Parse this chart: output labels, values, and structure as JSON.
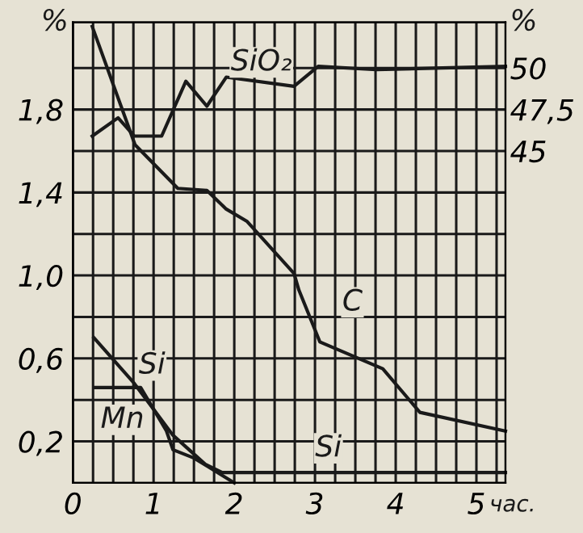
{
  "chart_data": {
    "type": "line",
    "xlabel": "час.",
    "ylabel": "%",
    "y2label": "%",
    "xlim": [
      0,
      5.36
    ],
    "ylim": [
      0,
      2.22
    ],
    "y2lim": [
      25,
      52.75
    ],
    "xticks": [
      0,
      {
        "value": 0.25,
        "label": null
      },
      {
        "value": 0.5,
        "label": null
      },
      {
        "value": 0.75,
        "label": null
      },
      1,
      {
        "value": 1.25,
        "label": null
      },
      {
        "value": 1.5,
        "label": null
      },
      {
        "value": 1.75,
        "label": null
      },
      2,
      {
        "value": 2.25,
        "label": null
      },
      {
        "value": 2.5,
        "label": null
      },
      {
        "value": 2.75,
        "label": null
      },
      3,
      {
        "value": 3.25,
        "label": null
      },
      {
        "value": 3.5,
        "label": null
      },
      {
        "value": 3.75,
        "label": null
      },
      4,
      {
        "value": 4.25,
        "label": null
      },
      {
        "value": 4.5,
        "label": null
      },
      {
        "value": 4.75,
        "label": null
      },
      5,
      {
        "value": 5.25,
        "label": null
      }
    ],
    "yticks": [
      {
        "value": 0.2,
        "label": "0,2"
      },
      {
        "value": 0.4,
        "label": null
      },
      {
        "value": 0.6,
        "label": "0,6"
      },
      {
        "value": 0.8,
        "label": null
      },
      {
        "value": 1.0,
        "label": "1,0"
      },
      {
        "value": 1.2,
        "label": null
      },
      {
        "value": 1.4,
        "label": "1,4"
      },
      {
        "value": 1.6,
        "label": null
      },
      {
        "value": 1.8,
        "label": "1,8"
      },
      {
        "value": 2.0,
        "label": null
      }
    ],
    "y2ticks": [
      45,
      {
        "value": 47.5,
        "label": "47,5"
      },
      50
    ],
    "grid": true,
    "marker": "none",
    "line_style": "solid",
    "series": [
      {
        "name": "SiO₂",
        "color": "#1a1a1a",
        "axis": "y2",
        "x": [
          0.24,
          0.56,
          0.76,
          1.1,
          1.4,
          1.66,
          1.9,
          2.74,
          3.04,
          3.76,
          5.36
        ],
        "values": [
          45.9,
          47.0,
          45.9,
          45.9,
          49.2,
          47.7,
          49.45,
          48.9,
          50.1,
          49.9,
          50.1
        ]
      },
      {
        "name": "C",
        "color": "#1a1a1a",
        "x": [
          0.24,
          0.77,
          1.3,
          1.66,
          1.9,
          2.16,
          2.74,
          2.8,
          3.06,
          3.84,
          4.3,
          5.36
        ],
        "values": [
          2.2,
          1.63,
          1.42,
          1.41,
          1.32,
          1.26,
          1.01,
          0.93,
          0.68,
          0.55,
          0.34,
          0.25
        ]
      },
      {
        "name": "Si",
        "color": "#1a1a1a",
        "x": [
          0.26,
          0.76,
          1.24,
          1.64,
          1.85,
          5.36
        ],
        "values": [
          0.7,
          0.48,
          0.23,
          0.09,
          0.05,
          0.05
        ]
      },
      {
        "name": "Mn",
        "color": "#1a1a1a",
        "x": [
          0.26,
          0.84,
          1.16,
          1.24,
          1.5,
          2.0
        ],
        "values": [
          0.46,
          0.46,
          0.25,
          0.16,
          0.12,
          0.0
        ]
      }
    ],
    "annotations": [
      "Si"
    ]
  }
}
